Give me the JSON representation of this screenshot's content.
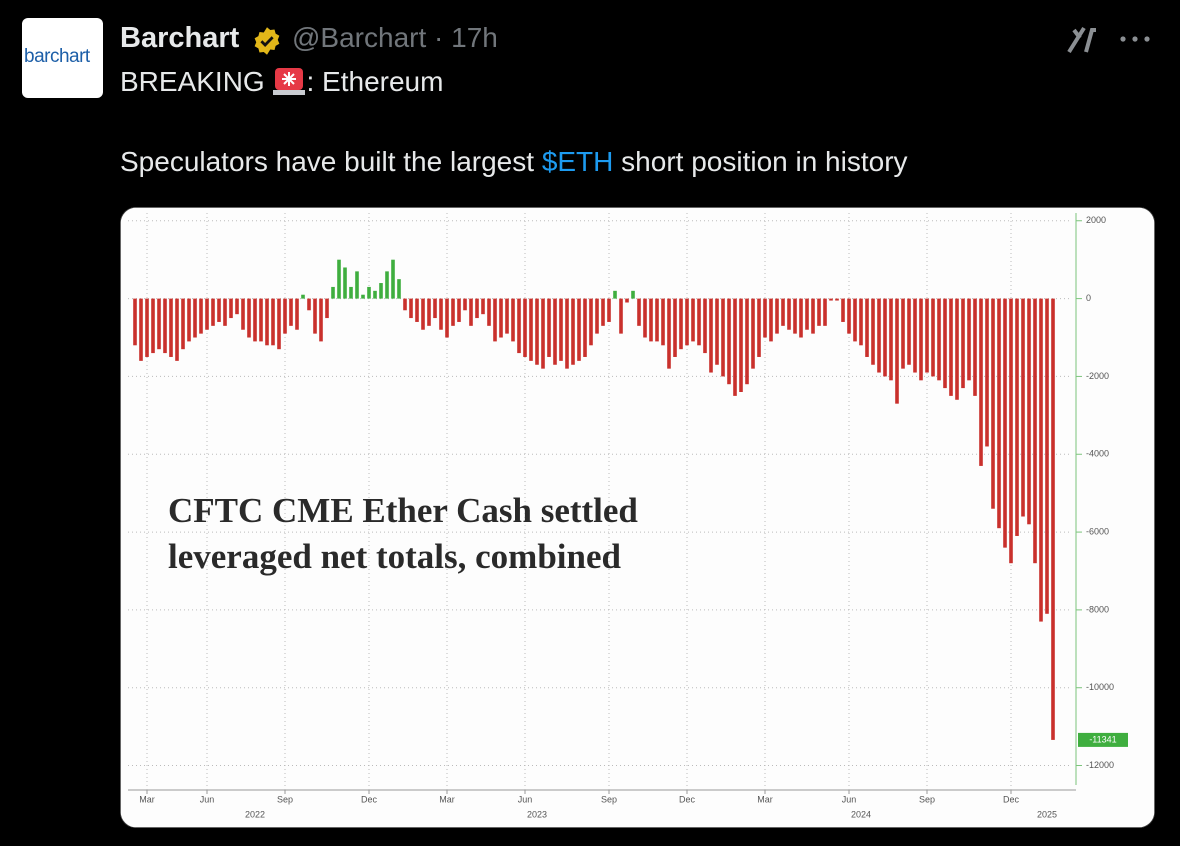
{
  "tweet": {
    "avatar": "barchart",
    "name": "Barchart",
    "meta": "@Barchart · 17h",
    "line1_start": "BREAKING",
    "line1_end": ": Ethereum",
    "line2": [
      "Speculators have built the largest ",
      "$ETH",
      " short position in history"
    ]
  },
  "chart_data": {
    "type": "bar",
    "annotation": [
      "CFTC CME Ether Cash settled",
      "leveraged net totals, combined"
    ],
    "values": [
      -1200,
      -1600,
      -1500,
      -1400,
      -1300,
      -1400,
      -1500,
      -1600,
      -1300,
      -1100,
      -1000,
      -900,
      -800,
      -700,
      -600,
      -700,
      -500,
      -400,
      -800,
      -1000,
      -1100,
      -1100,
      -1200,
      -1200,
      -1300,
      -900,
      -700,
      -800,
      100,
      -300,
      -900,
      -1100,
      -500,
      300,
      1000,
      800,
      300,
      700,
      100,
      300,
      200,
      400,
      700,
      1000,
      500,
      -300,
      -500,
      -600,
      -800,
      -700,
      -500,
      -800,
      -1000,
      -700,
      -600,
      -300,
      -700,
      -500,
      -400,
      -700,
      -1100,
      -1000,
      -900,
      -1100,
      -1400,
      -1500,
      -1600,
      -1700,
      -1800,
      -1500,
      -1700,
      -1600,
      -1800,
      -1700,
      -1600,
      -1500,
      -1200,
      -900,
      -700,
      -600,
      200,
      -900,
      -100,
      200,
      -700,
      -1000,
      -1100,
      -1100,
      -1200,
      -1800,
      -1500,
      -1300,
      -1200,
      -1100,
      -1200,
      -1400,
      -1900,
      -1700,
      -2000,
      -2200,
      -2500,
      -2400,
      -2200,
      -1800,
      -1500,
      -1000,
      -1100,
      -900,
      -700,
      -800,
      -900,
      -1000,
      -800,
      -900,
      -700,
      -700,
      -50,
      -50,
      -600,
      -900,
      -1100,
      -1200,
      -1500,
      -1700,
      -1900,
      -2000,
      -2100,
      -2700,
      -1800,
      -1700,
      -1900,
      -2100,
      -1900,
      -2000,
      -2100,
      -2300,
      -2500,
      -2600,
      -2300,
      -2100,
      -2500,
      -4300,
      -3800,
      -5400,
      -5900,
      -6400,
      -6800,
      -6100,
      -5600,
      -5800,
      -6800,
      -8300,
      -8100,
      -11341
    ],
    "colors": {
      "positive": "#3fae3f",
      "negative": "#c9302c"
    },
    "ylim": [
      -12500,
      2200
    ],
    "yticks": [
      2000,
      0,
      -2000,
      -4000,
      -6000,
      -8000,
      -10000,
      -12000
    ],
    "xticks": [
      {
        "value": 2,
        "label": "Mar"
      },
      {
        "value": 12,
        "label": "Jun"
      },
      {
        "value": 25,
        "label": "Sep"
      },
      {
        "value": 39,
        "label": "Dec"
      },
      {
        "value": 52,
        "label": "Mar"
      },
      {
        "value": 65,
        "label": "Jun"
      },
      {
        "value": 79,
        "label": "Sep"
      },
      {
        "value": 92,
        "label": "Dec"
      },
      {
        "value": 105,
        "label": "Mar"
      },
      {
        "value": 119,
        "label": "Jun"
      },
      {
        "value": 132,
        "label": "Sep"
      },
      {
        "value": 146,
        "label": "Dec"
      }
    ],
    "year_labels": [
      {
        "value": 20,
        "label": "2022"
      },
      {
        "value": 67,
        "label": "2023"
      },
      {
        "value": 121,
        "label": "2024"
      },
      {
        "value": 152,
        "label": "2025"
      }
    ],
    "grid": true
  }
}
